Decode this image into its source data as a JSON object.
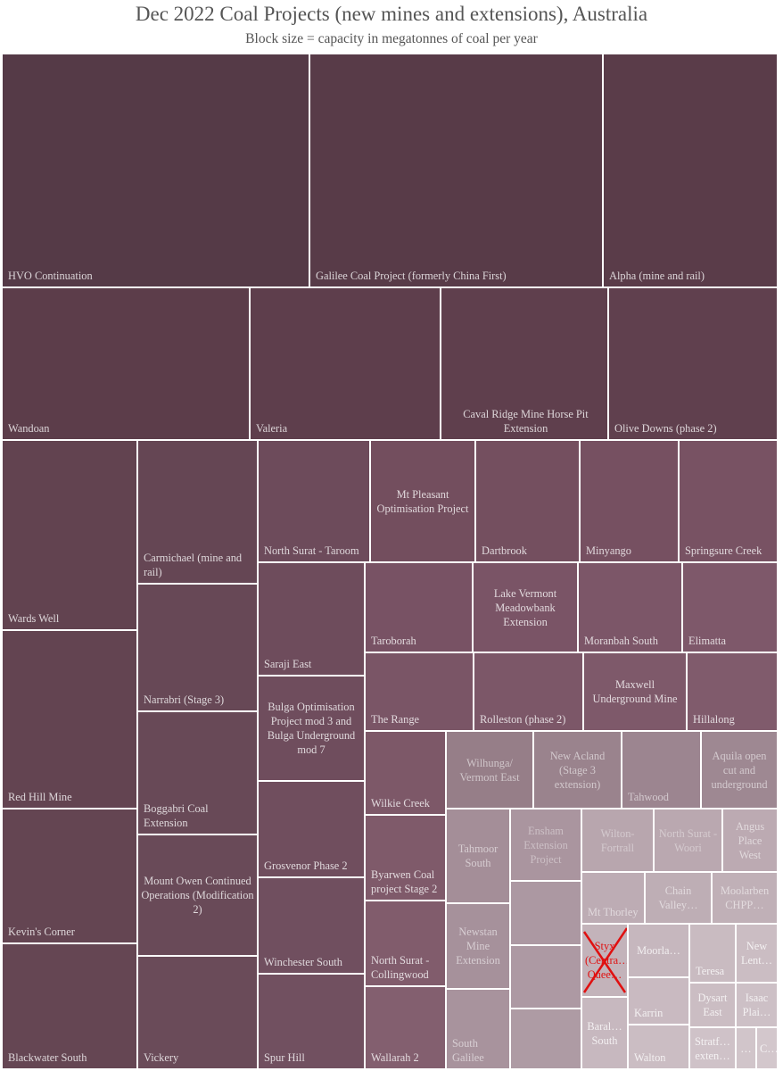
{
  "chart_data": {
    "type": "treemap",
    "title": "Dec 2022 Coal Projects (new mines and extensions), Australia",
    "subtitle": "Block size = capacity in megatonnes of coal per year",
    "projects": [
      {
        "name": "HVO Continuation",
        "color": "#553a47"
      },
      {
        "name": "Galilee Coal Project (formerly China First)",
        "color": "#583b48"
      },
      {
        "name": "Alpha (mine and rail)",
        "color": "#5a3c49"
      },
      {
        "name": "Wandoan",
        "color": "#5c3d4a"
      },
      {
        "name": "Valeria",
        "color": "#5e3e4c"
      },
      {
        "name": "Caval Ridge Mine Horse Pit Extension",
        "color": "#5f3f4d"
      },
      {
        "name": "Olive Downs (phase 2)",
        "color": "#60404e"
      },
      {
        "name": "Wards Well",
        "color": "#624350"
      },
      {
        "name": "Red Hill Mine",
        "color": "#634451"
      },
      {
        "name": "Kevin's Corner",
        "color": "#644552"
      },
      {
        "name": "Blackwater South",
        "color": "#654653"
      },
      {
        "name": "Carmichael (mine and rail)",
        "color": "#654654"
      },
      {
        "name": "Narrabri (Stage 3)",
        "color": "#674856"
      },
      {
        "name": "Boggabri Coal Extension",
        "color": "#684957"
      },
      {
        "name": "Mount Owen Continued Operations (Modification 2)",
        "color": "#694a58"
      },
      {
        "name": "Vickery",
        "color": "#6a4b59"
      },
      {
        "name": "North Surat - Taroom",
        "color": "#6d4b5b"
      },
      {
        "name": "Saraji East",
        "color": "#6e4c5c"
      },
      {
        "name": "Bulga Optimisation Project mod 3 and Bulga Underground mod 7",
        "color": "#6f4d5d"
      },
      {
        "name": "Grosvenor Phase 2",
        "color": "#704e5e"
      },
      {
        "name": "Winchester South",
        "color": "#704f5f"
      },
      {
        "name": "Spur Hill",
        "color": "#715060"
      },
      {
        "name": "Mt Pleasant Optimisation Project",
        "color": "#734e5e"
      },
      {
        "name": "Dartbrook",
        "color": "#744f5f"
      },
      {
        "name": "Minyango",
        "color": "#765061"
      },
      {
        "name": "Springsure Creek",
        "color": "#785263"
      },
      {
        "name": "Taroborah",
        "color": "#785264"
      },
      {
        "name": "Lake Vermont Meadowbank Extension",
        "color": "#7a5466"
      },
      {
        "name": "Moranbah South",
        "color": "#7c5668"
      },
      {
        "name": "Elimatta",
        "color": "#7e586a"
      },
      {
        "name": "The Range",
        "color": "#7a5566"
      },
      {
        "name": "Rolleston (phase 2)",
        "color": "#7c5768"
      },
      {
        "name": "Maxwell Underground Mine",
        "color": "#7e596a"
      },
      {
        "name": "Hillalong",
        "color": "#805b6c"
      },
      {
        "name": "Wilkie Creek",
        "color": "#7d5868"
      },
      {
        "name": "Byarwen Coal project Stage 2",
        "color": "#7f5a6a"
      },
      {
        "name": "North Surat - Collingwood",
        "color": "#815c6c"
      },
      {
        "name": "Wallarah 2",
        "color": "#835f6f"
      },
      {
        "name": "Wilhunga/ Vermont East",
        "color": "#967e88"
      },
      {
        "name": "New Acland (Stage 3 extension)",
        "color": "#9a838d"
      },
      {
        "name": "Tahwood",
        "color": "#9c8590"
      },
      {
        "name": "Aquila open cut and underground",
        "color": "#9e8892"
      },
      {
        "name": "Tahmoor South",
        "color": "#a48e98"
      },
      {
        "name": "Newstan Mine Extension",
        "color": "#a6919b"
      },
      {
        "name": "South Galilee",
        "color": "#a8939d"
      },
      {
        "name": "Ensham Extension Project",
        "color": "#aa959f"
      },
      {
        "name": "",
        "color": "#ac98a2"
      },
      {
        "name": "",
        "color": "#ad99a3"
      },
      {
        "name": "",
        "color": "#ae9ba4"
      },
      {
        "name": "Wilton-Fortrall",
        "color": "#b8a6ae"
      },
      {
        "name": "North Surat - Woori",
        "color": "#baa8b0"
      },
      {
        "name": "Angus Place West",
        "color": "#bcaab2"
      },
      {
        "name": "Mt Thorley",
        "color": "#bdacb4"
      },
      {
        "name": "Chain Valley…",
        "color": "#beaeb5"
      },
      {
        "name": "Moolarben CHPP…",
        "color": "#c0b0b7"
      },
      {
        "name": "Styx (Centra… Quee…",
        "color": "#c3b3ba"
      },
      {
        "name": "Moorla…",
        "color": "#c6b7be"
      },
      {
        "name": "Teresa",
        "color": "#c9bbc1"
      },
      {
        "name": "New Lent…",
        "color": "#cbbdc3"
      },
      {
        "name": "Karrin",
        "color": "#c9bac1"
      },
      {
        "name": "Dysart East",
        "color": "#cbbdc3"
      },
      {
        "name": "Isaac Plai…",
        "color": "#cdc0c6"
      },
      {
        "name": "Baral… South",
        "color": "#c7b8bf"
      },
      {
        "name": "Walton",
        "color": "#cbbdc3"
      },
      {
        "name": "Stratf… exten…",
        "color": "#cfc2c8"
      },
      {
        "name": "…",
        "color": "#d1c5ca"
      },
      {
        "name": "C…",
        "color": "#d3c7cc"
      }
    ]
  }
}
